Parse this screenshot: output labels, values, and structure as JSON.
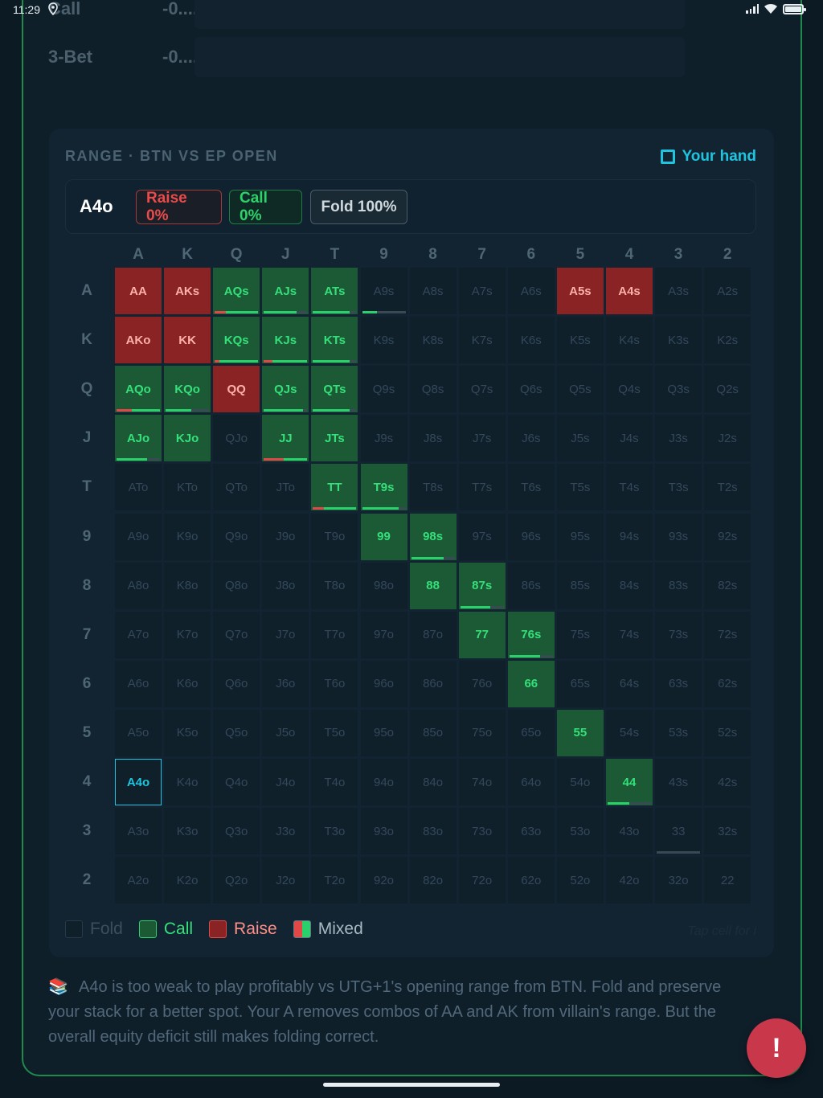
{
  "status": {
    "time": "11:29"
  },
  "stats": [
    {
      "label": "Call",
      "value": "-0...."
    },
    {
      "label": "3-Bet",
      "value": "-0...."
    }
  ],
  "card": {
    "title": "RANGE · BTN VS EP OPEN",
    "your_hand_label": "Your hand",
    "hand": "A4o",
    "raise_label": "Raise 0%",
    "call_label": "Call 0%",
    "fold_label": "Fold 100%"
  },
  "ranks": [
    "A",
    "K",
    "Q",
    "J",
    "T",
    "9",
    "8",
    "7",
    "6",
    "5",
    "4",
    "3",
    "2"
  ],
  "grid": [
    [
      "AA",
      "AKs",
      "AQs",
      "AJs",
      "ATs",
      "A9s",
      "A8s",
      "A7s",
      "A6s",
      "A5s",
      "A4s",
      "A3s",
      "A2s"
    ],
    [
      "AKo",
      "KK",
      "KQs",
      "KJs",
      "KTs",
      "K9s",
      "K8s",
      "K7s",
      "K6s",
      "K5s",
      "K4s",
      "K3s",
      "K2s"
    ],
    [
      "AQo",
      "KQo",
      "QQ",
      "QJs",
      "QTs",
      "Q9s",
      "Q8s",
      "Q7s",
      "Q6s",
      "Q5s",
      "Q4s",
      "Q3s",
      "Q2s"
    ],
    [
      "AJo",
      "KJo",
      "QJo",
      "JJ",
      "JTs",
      "J9s",
      "J8s",
      "J7s",
      "J6s",
      "J5s",
      "J4s",
      "J3s",
      "J2s"
    ],
    [
      "ATo",
      "KTo",
      "QTo",
      "JTo",
      "TT",
      "T9s",
      "T8s",
      "T7s",
      "T6s",
      "T5s",
      "T4s",
      "T3s",
      "T2s"
    ],
    [
      "A9o",
      "K9o",
      "Q9o",
      "J9o",
      "T9o",
      "99",
      "98s",
      "97s",
      "96s",
      "95s",
      "94s",
      "93s",
      "92s"
    ],
    [
      "A8o",
      "K8o",
      "Q8o",
      "J8o",
      "T8o",
      "98o",
      "88",
      "87s",
      "86s",
      "85s",
      "84s",
      "83s",
      "82s"
    ],
    [
      "A7o",
      "K7o",
      "Q7o",
      "J7o",
      "T7o",
      "97o",
      "87o",
      "77",
      "76s",
      "75s",
      "74s",
      "73s",
      "72s"
    ],
    [
      "A6o",
      "K6o",
      "Q6o",
      "J6o",
      "T6o",
      "96o",
      "86o",
      "76o",
      "66",
      "65s",
      "64s",
      "63s",
      "62s"
    ],
    [
      "A5o",
      "K5o",
      "Q5o",
      "J5o",
      "T5o",
      "95o",
      "85o",
      "75o",
      "65o",
      "55",
      "54s",
      "53s",
      "52s"
    ],
    [
      "A4o",
      "K4o",
      "Q4o",
      "J4o",
      "T4o",
      "94o",
      "84o",
      "74o",
      "64o",
      "54o",
      "44",
      "43s",
      "42s"
    ],
    [
      "A3o",
      "K3o",
      "Q3o",
      "J3o",
      "T3o",
      "93o",
      "83o",
      "73o",
      "63o",
      "53o",
      "43o",
      "33",
      "32s"
    ],
    [
      "A2o",
      "K2o",
      "Q2o",
      "J2o",
      "T2o",
      "92o",
      "82o",
      "72o",
      "62o",
      "52o",
      "42o",
      "32o",
      "22"
    ]
  ],
  "actions": {
    "raise": [
      "AA",
      "AKs",
      "AKo",
      "KK",
      "QQ",
      "A5s",
      "A4s"
    ],
    "call": [
      "AQs",
      "AJs",
      "ATs",
      "KQs",
      "KJs",
      "KTs",
      "AQo",
      "KQo",
      "QJs",
      "QTs",
      "AJo",
      "KJo",
      "JJ",
      "JTs",
      "TT",
      "T9s",
      "99",
      "98s",
      "88",
      "87s",
      "77",
      "76s",
      "66",
      "55",
      "44"
    ],
    "active": "A4o",
    "mix_bars": {
      "AQs": {
        "r": 0.25,
        "c": 0.75
      },
      "AJs": {
        "r": 0,
        "c": 0.75
      },
      "ATs": {
        "r": 0,
        "c": 0.85
      },
      "A9s": {
        "r": 0,
        "c": 0.35
      },
      "KQs": {
        "r": 0.1,
        "c": 0.9
      },
      "KJs": {
        "r": 0.2,
        "c": 0.8
      },
      "KTs": {
        "r": 0,
        "c": 0.85
      },
      "AQo": {
        "r": 0.35,
        "c": 0.65
      },
      "KQo": {
        "r": 0,
        "c": 0.6
      },
      "QJs": {
        "r": 0,
        "c": 0.9
      },
      "QTs": {
        "r": 0,
        "c": 0.85
      },
      "AJo": {
        "r": 0,
        "c": 0.7
      },
      "JJ": {
        "r": 0.45,
        "c": 0.55
      },
      "TT": {
        "r": 0.25,
        "c": 0.75
      },
      "T9s": {
        "r": 0,
        "c": 0.85
      },
      "98s": {
        "r": 0,
        "c": 0.75
      },
      "87s": {
        "r": 0,
        "c": 0.7
      },
      "76s": {
        "r": 0,
        "c": 0.7
      },
      "44": {
        "r": 0,
        "c": 0.5
      },
      "33": {
        "r": 0,
        "c": 0
      }
    }
  },
  "legend": {
    "fold": "Fold",
    "call": "Call",
    "raise": "Raise",
    "mixed": "Mixed",
    "hint": "Tap cell for i"
  },
  "explanation": "A4o is too weak to play profitably vs UTG+1's opening range from BTN. Fold and preserve your stack for a better spot. Your A removes combos of AA and AK from villain's range. But the overall equity deficit still makes folding correct.",
  "fab_label": "!"
}
